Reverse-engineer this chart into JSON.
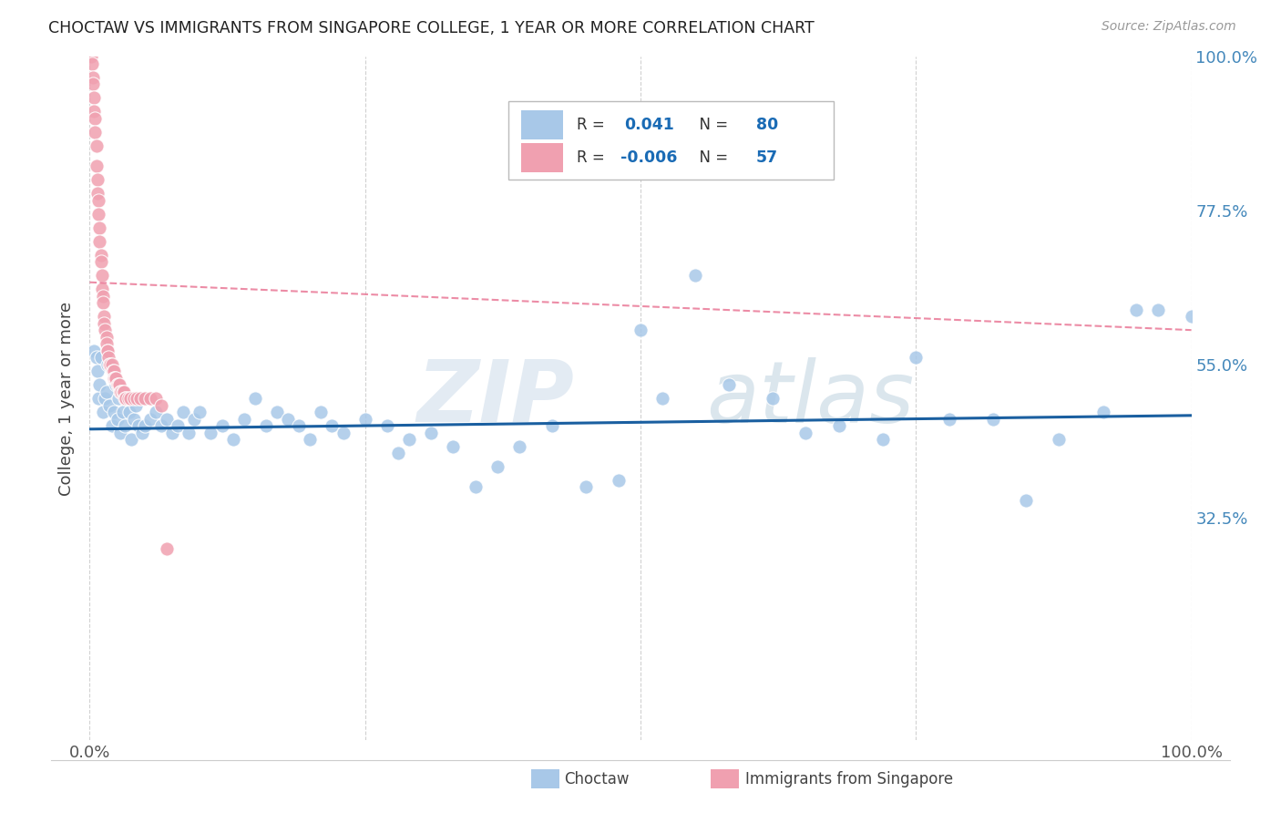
{
  "title": "CHOCTAW VS IMMIGRANTS FROM SINGAPORE COLLEGE, 1 YEAR OR MORE CORRELATION CHART",
  "source": "Source: ZipAtlas.com",
  "ylabel": "College, 1 year or more",
  "xlim": [
    0,
    1
  ],
  "ylim": [
    0,
    1
  ],
  "xtick_positions": [
    0.0,
    0.25,
    0.5,
    0.75,
    1.0
  ],
  "xticklabels": [
    "0.0%",
    "",
    "",
    "",
    "100.0%"
  ],
  "ytick_positions_right": [
    1.0,
    0.775,
    0.55,
    0.325,
    0.0
  ],
  "ytick_labels_right": [
    "100.0%",
    "77.5%",
    "55.0%",
    "32.5%",
    ""
  ],
  "blue_R": "0.041",
  "blue_N": "80",
  "pink_R": "-0.006",
  "pink_N": "57",
  "blue_color": "#A8C8E8",
  "pink_color": "#F0A0B0",
  "blue_line_color": "#1A5FA0",
  "pink_line_color": "#E87090",
  "watermark_zip": "ZIP",
  "watermark_atlas": "atlas",
  "legend_label_blue": "Choctaw",
  "legend_label_pink": "Immigrants from Singapore",
  "blue_scatter_x": [
    0.004,
    0.006,
    0.007,
    0.008,
    0.009,
    0.01,
    0.012,
    0.014,
    0.015,
    0.016,
    0.018,
    0.02,
    0.022,
    0.024,
    0.025,
    0.026,
    0.028,
    0.03,
    0.032,
    0.034,
    0.036,
    0.038,
    0.04,
    0.042,
    0.044,
    0.046,
    0.048,
    0.05,
    0.055,
    0.06,
    0.065,
    0.07,
    0.075,
    0.08,
    0.085,
    0.09,
    0.095,
    0.1,
    0.11,
    0.12,
    0.13,
    0.14,
    0.15,
    0.16,
    0.17,
    0.18,
    0.19,
    0.2,
    0.21,
    0.22,
    0.23,
    0.25,
    0.27,
    0.28,
    0.29,
    0.31,
    0.33,
    0.35,
    0.37,
    0.39,
    0.42,
    0.45,
    0.48,
    0.5,
    0.52,
    0.55,
    0.58,
    0.62,
    0.65,
    0.68,
    0.72,
    0.75,
    0.78,
    0.82,
    0.85,
    0.88,
    0.92,
    0.95,
    0.97,
    1.0
  ],
  "blue_scatter_y": [
    0.57,
    0.56,
    0.54,
    0.5,
    0.52,
    0.56,
    0.48,
    0.5,
    0.51,
    0.55,
    0.49,
    0.46,
    0.48,
    0.52,
    0.47,
    0.5,
    0.45,
    0.48,
    0.46,
    0.5,
    0.48,
    0.44,
    0.47,
    0.49,
    0.46,
    0.5,
    0.45,
    0.46,
    0.47,
    0.48,
    0.46,
    0.47,
    0.45,
    0.46,
    0.48,
    0.45,
    0.47,
    0.48,
    0.45,
    0.46,
    0.44,
    0.47,
    0.5,
    0.46,
    0.48,
    0.47,
    0.46,
    0.44,
    0.48,
    0.46,
    0.45,
    0.47,
    0.46,
    0.42,
    0.44,
    0.45,
    0.43,
    0.37,
    0.4,
    0.43,
    0.46,
    0.37,
    0.38,
    0.6,
    0.5,
    0.68,
    0.52,
    0.5,
    0.45,
    0.46,
    0.44,
    0.56,
    0.47,
    0.47,
    0.35,
    0.44,
    0.48,
    0.63,
    0.63,
    0.62
  ],
  "pink_scatter_x": [
    0.001,
    0.002,
    0.003,
    0.003,
    0.004,
    0.004,
    0.005,
    0.005,
    0.006,
    0.006,
    0.007,
    0.007,
    0.008,
    0.008,
    0.009,
    0.009,
    0.01,
    0.01,
    0.011,
    0.011,
    0.012,
    0.012,
    0.013,
    0.013,
    0.014,
    0.015,
    0.015,
    0.016,
    0.016,
    0.017,
    0.018,
    0.019,
    0.02,
    0.021,
    0.022,
    0.022,
    0.023,
    0.024,
    0.025,
    0.026,
    0.027,
    0.028,
    0.029,
    0.03,
    0.031,
    0.032,
    0.033,
    0.035,
    0.037,
    0.04,
    0.043,
    0.046,
    0.05,
    0.055,
    0.06,
    0.065,
    0.07
  ],
  "pink_scatter_y": [
    1.0,
    0.99,
    0.97,
    0.96,
    0.94,
    0.92,
    0.91,
    0.89,
    0.87,
    0.84,
    0.82,
    0.8,
    0.79,
    0.77,
    0.75,
    0.73,
    0.71,
    0.7,
    0.68,
    0.66,
    0.65,
    0.64,
    0.62,
    0.61,
    0.6,
    0.59,
    0.58,
    0.57,
    0.57,
    0.56,
    0.55,
    0.55,
    0.55,
    0.54,
    0.54,
    0.53,
    0.53,
    0.53,
    0.52,
    0.52,
    0.52,
    0.51,
    0.51,
    0.51,
    0.51,
    0.5,
    0.5,
    0.5,
    0.5,
    0.5,
    0.5,
    0.5,
    0.5,
    0.5,
    0.5,
    0.49,
    0.28
  ],
  "pink_trend_x": [
    0.0,
    1.0
  ],
  "pink_trend_y": [
    0.67,
    0.6
  ],
  "blue_trend_x": [
    0.0,
    1.0
  ],
  "blue_trend_y": [
    0.455,
    0.475
  ],
  "grid_color": "#cccccc",
  "background_color": "#ffffff"
}
